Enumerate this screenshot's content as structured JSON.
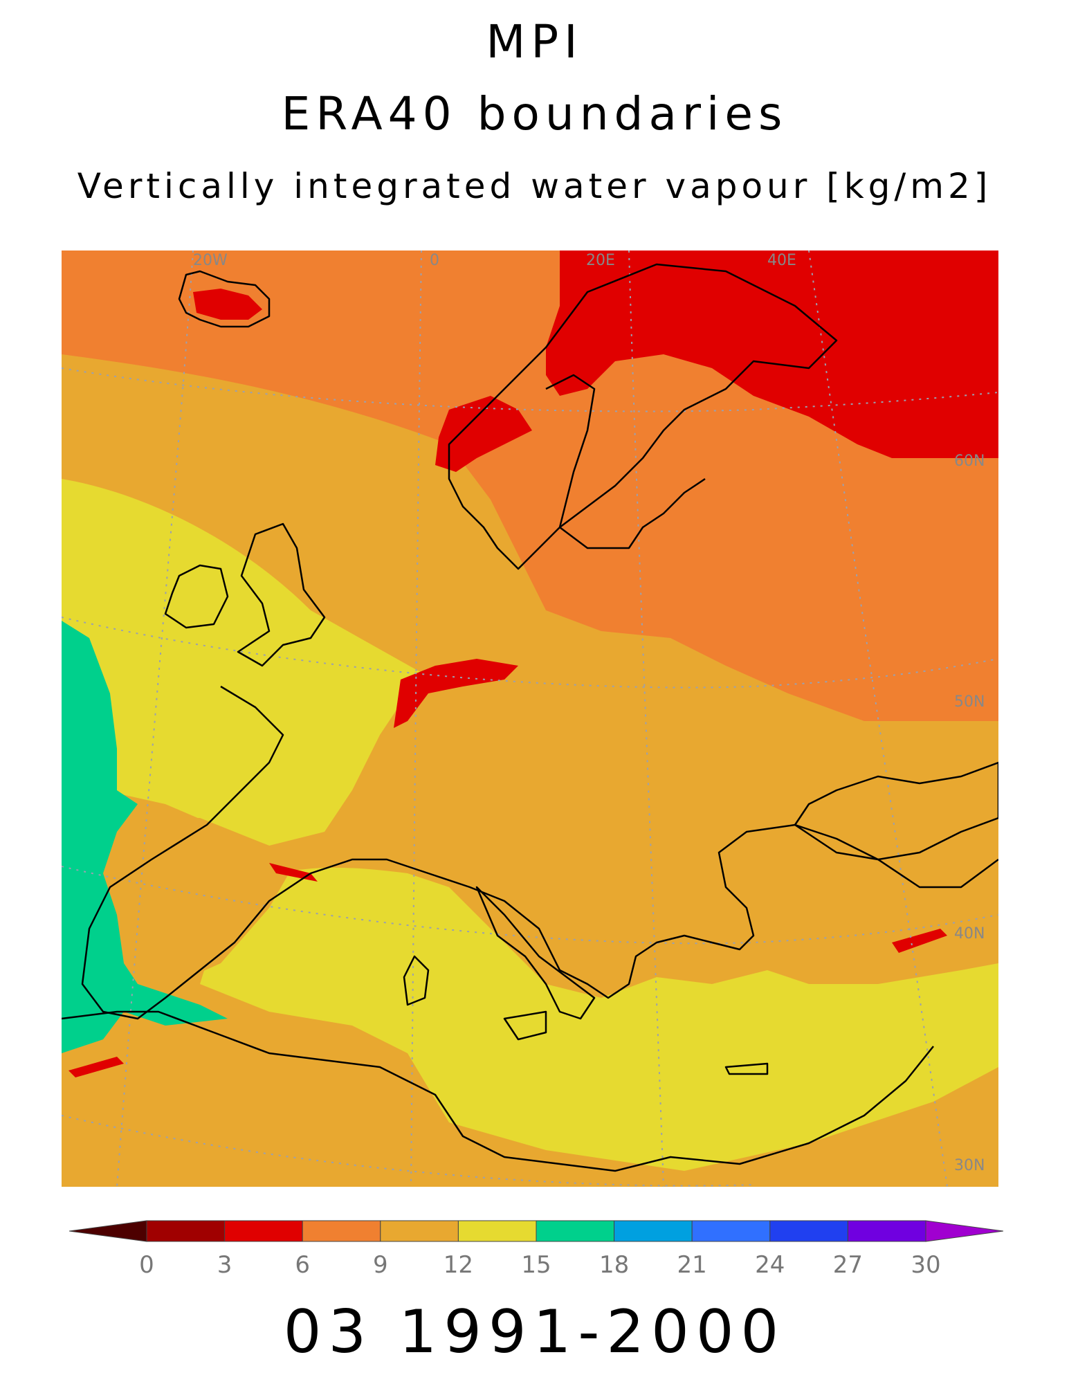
{
  "titles": {
    "line1": "MPI",
    "line2": "ERA40 boundaries",
    "line3": "Vertically integrated water vapour [kg/m2]"
  },
  "period_label": "03 1991-2000",
  "map": {
    "region": "Europe",
    "longitude_labels": [
      "20W",
      "0",
      "20E",
      "40E"
    ],
    "latitude_labels": [
      "60N",
      "50N",
      "40N",
      "30N"
    ],
    "colors": {
      "background": "#f0a030",
      "coastline": "#000000",
      "gridline": "#9aa0b0"
    }
  },
  "colorbar": {
    "ticks": [
      "0",
      "3",
      "6",
      "9",
      "12",
      "15",
      "18",
      "21",
      "24",
      "27",
      "30"
    ],
    "colors": [
      "#4d0000",
      "#a00000",
      "#e00000",
      "#f08030",
      "#e8a830",
      "#e6da30",
      "#00d08c",
      "#00a0e0",
      "#3070ff",
      "#2040f0",
      "#7000e0",
      "#a000d0"
    ]
  }
}
